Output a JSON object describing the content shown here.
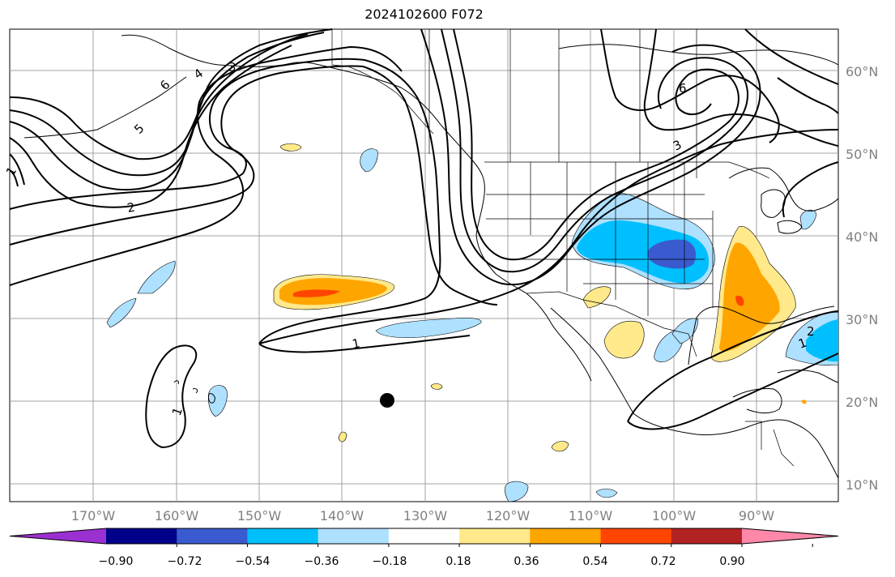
{
  "title": "2024102600 F072",
  "latitude_labels": [
    "60°N",
    "50°N",
    "40°N",
    "30°N",
    "20°N",
    "10°N"
  ],
  "longitude_labels": [
    "170°W",
    "160°W",
    "150°W",
    "140°W",
    "130°W",
    "120°W",
    "110°W",
    "100°W",
    "90°W"
  ],
  "colorbar": {
    "tick_labels": [
      "−0.90",
      "−0.72",
      "−0.54",
      "−0.36",
      "−0.18",
      "0.18",
      "0.36",
      "0.54",
      "0.72",
      "0.90"
    ],
    "colors": [
      "#9b30d0",
      "#00008b",
      "#3a5bcf",
      "#00bfff",
      "#aee0ff",
      "#ffffff",
      "#ffe98a",
      "#ffa500",
      "#ff4500",
      "#b22222",
      "#ff88aa"
    ]
  },
  "contour_labels": [
    "1",
    "1",
    "1",
    "2",
    "2",
    "3",
    "3",
    "4",
    "5",
    "6",
    "6",
    "1"
  ],
  "map_colors": {
    "contour": "#000000",
    "grid": "#a0a0a0",
    "coast": "#000000"
  }
}
